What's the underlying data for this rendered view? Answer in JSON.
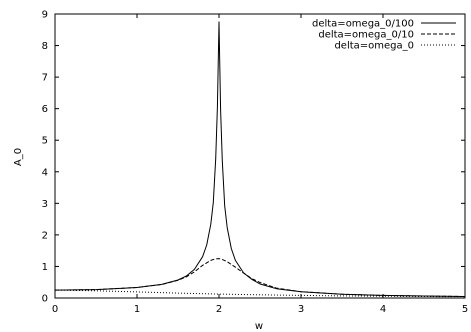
{
  "chart_data": {
    "type": "line",
    "xlabel": "w",
    "ylabel": "A_0",
    "xlim": [
      0,
      5
    ],
    "ylim": [
      0,
      9
    ],
    "xticks": [
      0,
      1,
      2,
      3,
      4,
      5
    ],
    "yticks": [
      0,
      1,
      2,
      3,
      4,
      5,
      6,
      7,
      8,
      9
    ],
    "grid": false,
    "legend_position": "top-right",
    "series": [
      {
        "name": "delta=omega_0/100",
        "style": "solid",
        "x": [
          0,
          0.5,
          1.0,
          1.3,
          1.5,
          1.6,
          1.7,
          1.8,
          1.85,
          1.9,
          1.93,
          1.96,
          1.98,
          2.0,
          2.02,
          2.04,
          2.07,
          2.1,
          2.15,
          2.2,
          2.3,
          2.4,
          2.5,
          2.7,
          3.0,
          3.5,
          4.0,
          4.5,
          5.0
        ],
        "y": [
          0.25,
          0.267,
          0.333,
          0.431,
          0.571,
          0.694,
          0.907,
          1.31,
          1.68,
          2.34,
          3.03,
          4.41,
          6.05,
          8.75,
          5.96,
          4.34,
          2.92,
          2.23,
          1.57,
          1.19,
          0.797,
          0.594,
          0.444,
          0.296,
          0.2,
          0.121,
          0.083,
          0.062,
          0.048
        ]
      },
      {
        "name": "delta=omega_0/10",
        "style": "dashed",
        "x": [
          0,
          0.5,
          1.0,
          1.3,
          1.5,
          1.6,
          1.7,
          1.8,
          1.9,
          1.95,
          2.0,
          2.05,
          2.1,
          2.2,
          2.3,
          2.4,
          2.5,
          2.7,
          3.0,
          3.5,
          4.0,
          4.5,
          5.0
        ],
        "y": [
          0.25,
          0.266,
          0.332,
          0.428,
          0.56,
          0.668,
          0.828,
          1.036,
          1.193,
          1.236,
          1.25,
          1.21,
          1.15,
          0.975,
          0.788,
          0.618,
          0.491,
          0.314,
          0.199,
          0.12,
          0.083,
          0.062,
          0.048
        ]
      },
      {
        "name": "delta=omega_0",
        "style": "dotted",
        "x": [
          0,
          0.5,
          1.0,
          1.5,
          2.0,
          2.5,
          3.0,
          3.5,
          4.0,
          4.5,
          5.0
        ],
        "y": [
          0.25,
          0.229,
          0.192,
          0.155,
          0.125,
          0.101,
          0.083,
          0.068,
          0.056,
          0.047,
          0.04
        ]
      }
    ]
  }
}
